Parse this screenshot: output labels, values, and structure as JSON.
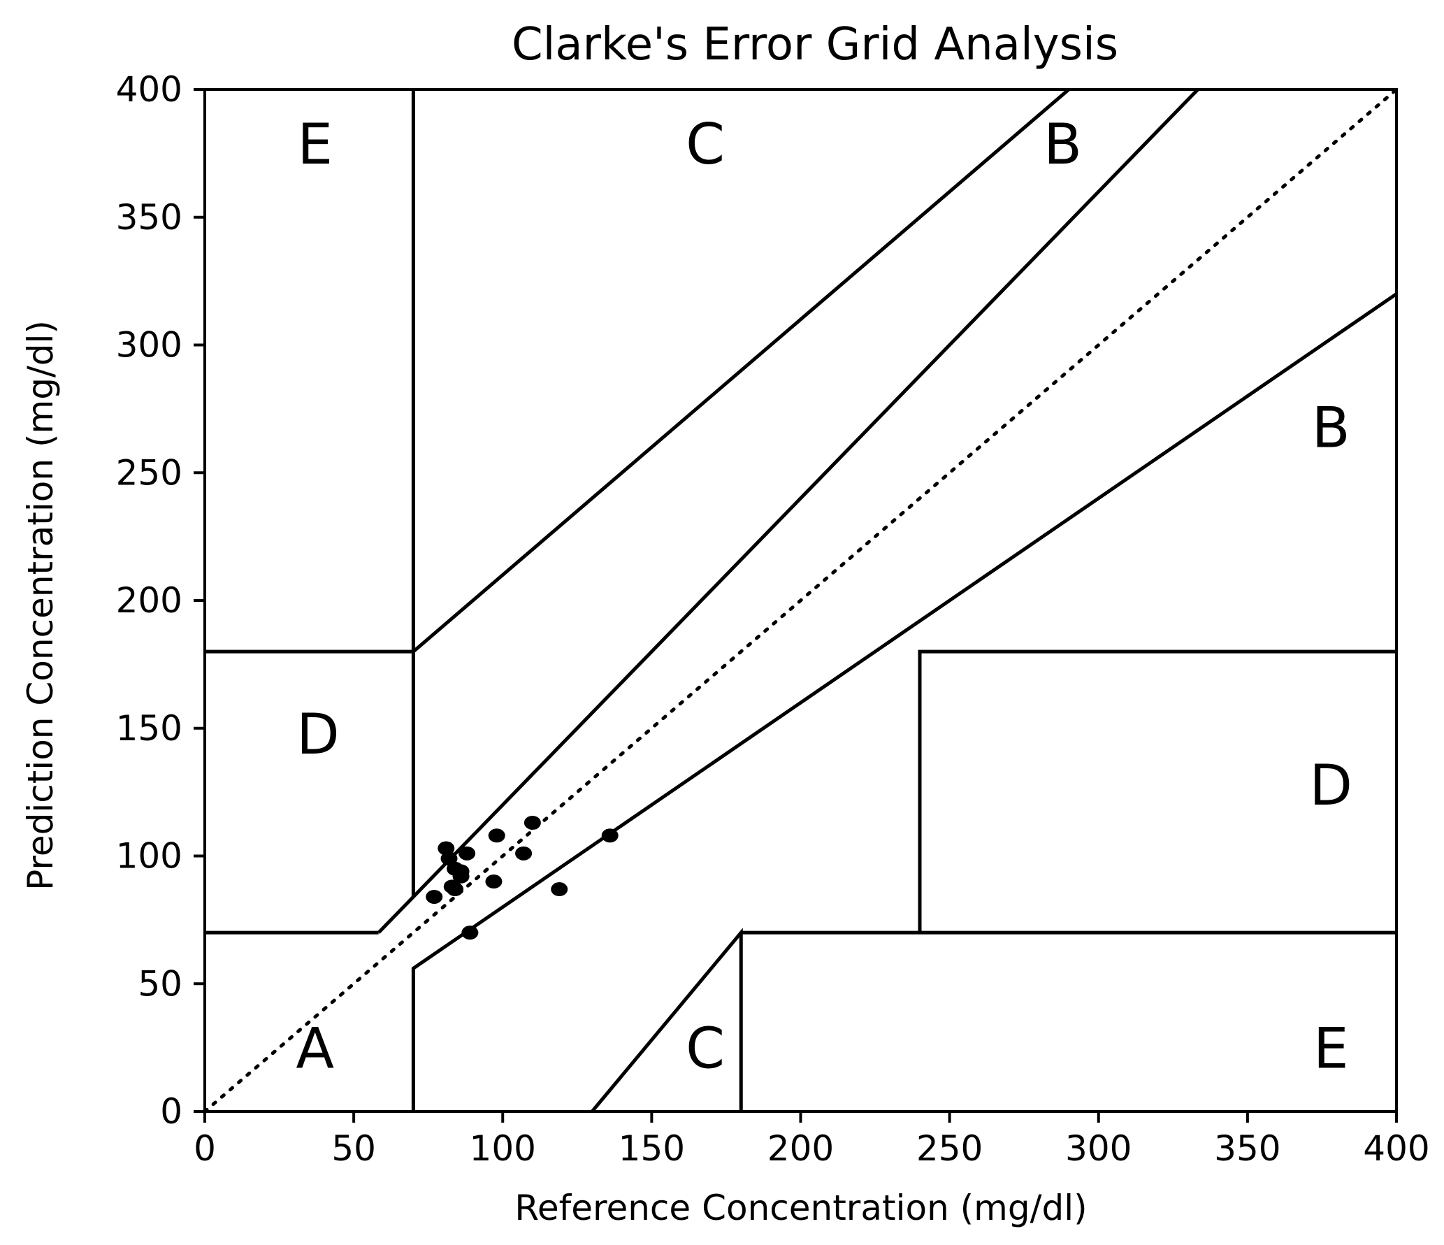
{
  "chart_data": {
    "type": "scatter",
    "title": "Clarke's Error Grid Analysis",
    "xlabel": "Reference Concentration (mg/dl)",
    "ylabel": "Prediction Concentration (mg/dl)",
    "xlim": [
      0,
      400
    ],
    "ylim": [
      0,
      400
    ],
    "xticks": [
      "0",
      "50",
      "100",
      "150",
      "200",
      "250",
      "300",
      "350",
      "400"
    ],
    "yticks": [
      "0",
      "50",
      "100",
      "150",
      "200",
      "250",
      "300",
      "350",
      "400"
    ],
    "grid": false,
    "legend": null,
    "reference_line": {
      "style": "dotted",
      "points": [
        [
          0,
          0
        ],
        [
          400,
          400
        ]
      ]
    },
    "zone_boundaries": [
      {
        "points": [
          [
            70,
            400
          ],
          [
            70,
            84
          ]
        ]
      },
      {
        "points": [
          [
            0,
            180
          ],
          [
            70,
            180
          ],
          [
            290,
            400
          ]
        ]
      },
      {
        "points": [
          [
            58.33,
            70
          ],
          [
            70,
            84
          ],
          [
            333.33,
            400
          ]
        ]
      },
      {
        "points": [
          [
            0,
            70
          ],
          [
            58.33,
            70
          ]
        ]
      },
      {
        "points": [
          [
            70,
            0
          ],
          [
            70,
            56
          ],
          [
            400,
            320
          ]
        ]
      },
      {
        "points": [
          [
            240,
            70
          ],
          [
            240,
            180
          ],
          [
            400,
            180
          ]
        ]
      },
      {
        "points": [
          [
            130,
            0
          ],
          [
            180,
            70
          ],
          [
            180,
            0
          ]
        ]
      },
      {
        "points": [
          [
            180,
            70
          ],
          [
            400,
            70
          ]
        ]
      }
    ],
    "zone_labels": [
      {
        "text": "E",
        "x": 37,
        "y": 379
      },
      {
        "text": "C",
        "x": 168,
        "y": 379
      },
      {
        "text": "B",
        "x": 288,
        "y": 379
      },
      {
        "text": "B",
        "x": 378,
        "y": 268
      },
      {
        "text": "D",
        "x": 38,
        "y": 148
      },
      {
        "text": "D",
        "x": 378,
        "y": 128
      },
      {
        "text": "A",
        "x": 37,
        "y": 25
      },
      {
        "text": "C",
        "x": 168,
        "y": 25
      },
      {
        "text": "E",
        "x": 378,
        "y": 25
      }
    ],
    "series": [
      {
        "x": [
          81,
          82,
          88,
          98,
          110,
          107,
          84,
          86,
          83,
          86,
          97,
          77,
          119,
          136,
          89,
          84
        ],
        "y": [
          103,
          99,
          101,
          108,
          113,
          101,
          95,
          94,
          88,
          92,
          90,
          84,
          87,
          108,
          70,
          87
        ],
        "color": "#000000",
        "marker": "circle"
      }
    ],
    "colors": {
      "line": "#000000",
      "points": "#000000",
      "background": "#ffffff"
    }
  }
}
